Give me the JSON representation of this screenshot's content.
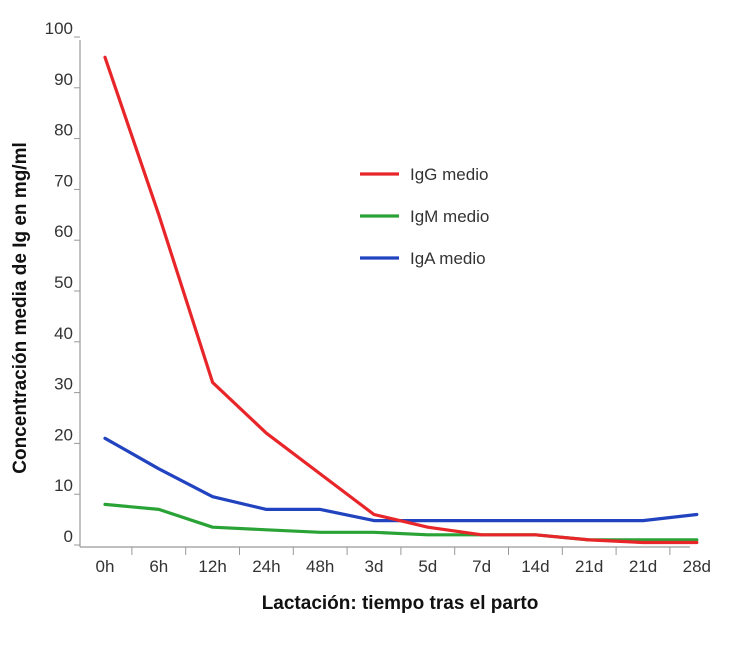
{
  "chart_data": {
    "type": "line",
    "title": "",
    "xlabel": "Lactación: tiempo tras el parto",
    "ylabel": "Concentración media de Ig en mg/ml",
    "categories": [
      "0h",
      "6h",
      "12h",
      "24h",
      "48h",
      "3d",
      "5d",
      "7d",
      "14d",
      "21d",
      "21d",
      "28d"
    ],
    "ylim": [
      0,
      100
    ],
    "yticks": [
      0,
      10,
      20,
      30,
      40,
      50,
      60,
      70,
      80,
      90,
      100
    ],
    "grid": false,
    "legend_position": "upper-right",
    "series": [
      {
        "name": "IgG medio",
        "color": "#e8262a",
        "values": [
          96,
          65,
          32,
          22,
          14,
          6,
          3.5,
          2,
          2,
          1,
          0.5,
          0.5
        ]
      },
      {
        "name": "IgM medio",
        "color": "#2aa336",
        "values": [
          8,
          7,
          3.5,
          3,
          2.5,
          2.5,
          2,
          2,
          2,
          1,
          1,
          1
        ]
      },
      {
        "name": "IgA medio",
        "color": "#2143c0",
        "values": [
          21,
          15,
          9.5,
          7,
          7,
          4.8,
          4.8,
          4.8,
          4.8,
          4.8,
          4.8,
          6
        ]
      }
    ]
  }
}
